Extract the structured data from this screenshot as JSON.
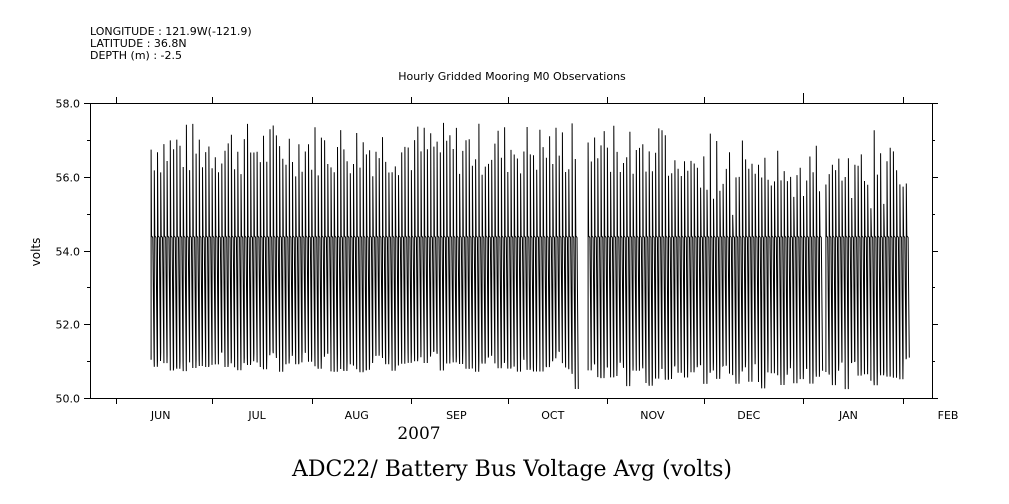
{
  "header": {
    "longitude": "LONGITUDE : 121.9W(-121.9)",
    "latitude": "LATITUDE : 36.8N",
    "depth": "DEPTH (m) : -2.5"
  },
  "chart_data": {
    "type": "line",
    "title": "Hourly Gridded Mooring M0 Observations",
    "bottom_title": "ADC22/ Battery Bus Voltage Avg (volts)",
    "ylabel": "volts",
    "xlabel": "2007",
    "ylim": [
      50.0,
      58.0
    ],
    "yticks": [
      "50.0",
      "52.0",
      "54.0",
      "56.0",
      "58.0"
    ],
    "ytick_values": [
      50,
      52,
      54,
      56,
      58
    ],
    "month_labels": [
      "JUN",
      "JUL",
      "AUG",
      "SEP",
      "OCT",
      "NOV",
      "DEC",
      "JAN",
      "FEB"
    ],
    "series": [
      {
        "color": "#000000",
        "start": "2007-06-12",
        "end": "2008-02-03",
        "cycle_days": 1,
        "daily_max_range": [
          56.0,
          57.5
        ],
        "daily_min_range": [
          50.1,
          51.3
        ],
        "plateau": 54.4,
        "gaps": [
          [
            "2007-10-23",
            "2007-10-26"
          ],
          [
            "2008-01-07",
            "2008-01-08"
          ]
        ]
      }
    ]
  }
}
